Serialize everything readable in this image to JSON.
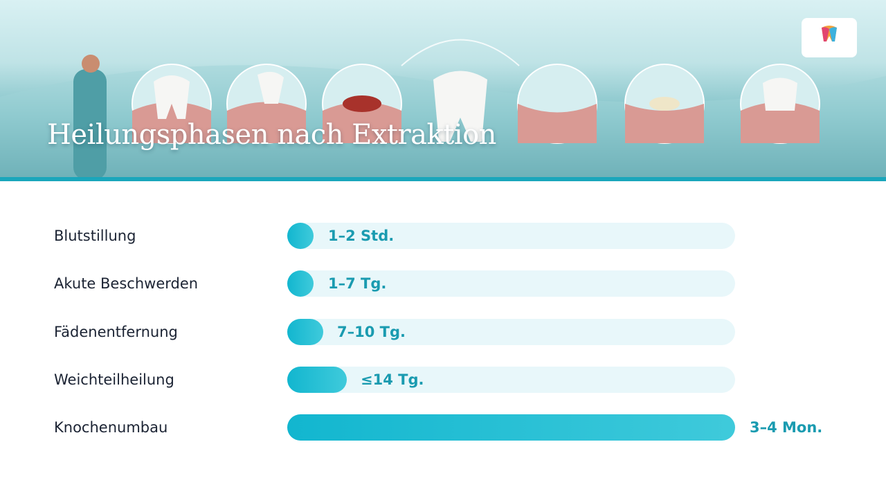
{
  "header": {
    "title": "Heilungsphasen nach Extraktion"
  },
  "phases": [
    {
      "label": "Blutstillung",
      "duration": "1–2 Std."
    },
    {
      "label": "Akute Beschwerden",
      "duration": "1–7 Tg."
    },
    {
      "label": "Fädenentfernung",
      "duration": "7–10 Tg."
    },
    {
      "label": "Weichteilheilung",
      "duration": "≤14 Tg."
    },
    {
      "label": "Knochenumbau",
      "duration": "3–4 Mon."
    }
  ]
}
